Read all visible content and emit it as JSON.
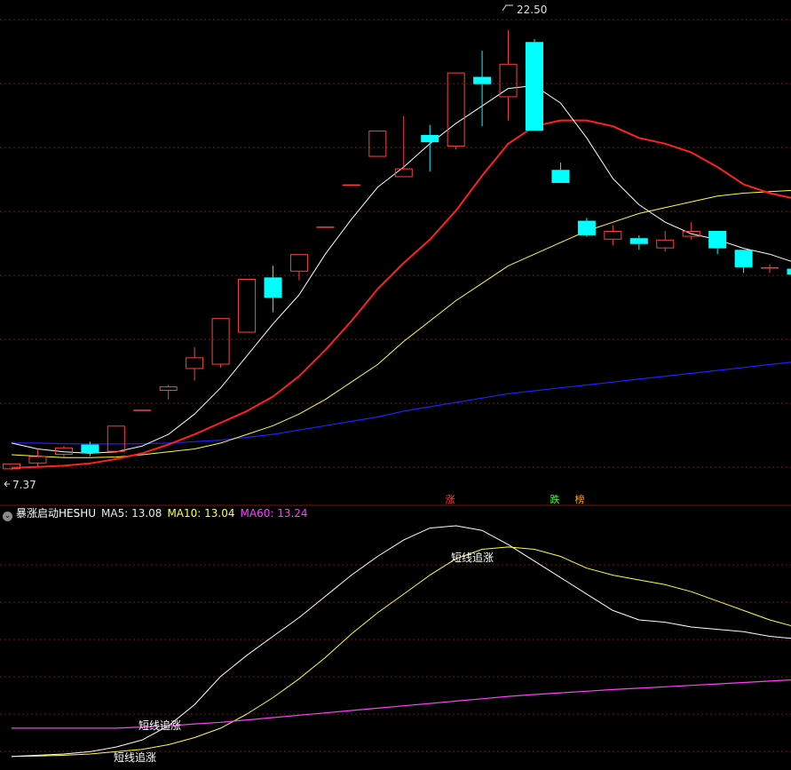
{
  "colors": {
    "background": "#000000",
    "bull": "#ff4040",
    "bear": "#00ffff",
    "ma_short": "#ffffff",
    "ma_mid": "#ff2020",
    "ma_long": "#ffff40",
    "ma_slow": "#2020ff",
    "ind_ma10": "#ffff40",
    "ind_ma60": "#ff40ff",
    "grid": "#7a1515"
  },
  "header": {
    "toggle_icon": "chevron-down-icon",
    "indicator_name": "暴涨启动HESHU",
    "ma5_label": "MA5: 13.08",
    "ma10_label": "MA10: 13.04",
    "ma60_label": "MA60: 13.24"
  },
  "tags": {
    "up": "涨",
    "down": "跌",
    "board": "榜"
  },
  "chart_data": [
    {
      "type": "candlestick",
      "high_label": "22.50",
      "low_label": "7.37",
      "ylim": [
        6.8,
        23.3
      ],
      "candles": [
        {
          "o": 7.4,
          "c": 7.6,
          "h": 7.6,
          "l": 7.37
        },
        {
          "o": 7.6,
          "c": 7.85,
          "h": 8.1,
          "l": 7.5
        },
        {
          "o": 7.9,
          "c": 8.15,
          "h": 8.2,
          "l": 7.8
        },
        {
          "o": 8.25,
          "c": 7.95,
          "h": 8.35,
          "l": 7.85
        },
        {
          "o": 8.0,
          "c": 8.9,
          "h": 8.9,
          "l": 7.95
        },
        {
          "o": 9.45,
          "c": 9.45,
          "h": 9.45,
          "l": 9.45
        },
        {
          "o": 10.1,
          "c": 10.25,
          "h": 10.3,
          "l": 9.8
        },
        {
          "o": 10.85,
          "c": 11.25,
          "h": 11.6,
          "l": 10.45
        },
        {
          "o": 11.0,
          "c": 12.6,
          "h": 12.6,
          "l": 10.9
        },
        {
          "o": 12.1,
          "c": 13.95,
          "h": 13.95,
          "l": 12.1
        },
        {
          "o": 14.0,
          "c": 13.3,
          "h": 14.4,
          "l": 12.8
        },
        {
          "o": 14.2,
          "c": 14.8,
          "h": 14.8,
          "l": 13.9
        },
        {
          "o": 15.75,
          "c": 15.75,
          "h": 15.75,
          "l": 15.75
        },
        {
          "o": 17.2,
          "c": 17.2,
          "h": 17.2,
          "l": 17.2
        },
        {
          "o": 18.15,
          "c": 19.05,
          "h": 19.05,
          "l": 18.15
        },
        {
          "o": 17.45,
          "c": 17.75,
          "h": 19.55,
          "l": 17.45
        },
        {
          "o": 18.9,
          "c": 18.65,
          "h": 19.25,
          "l": 17.65
        },
        {
          "o": 18.5,
          "c": 21.05,
          "h": 21.05,
          "l": 18.4
        },
        {
          "o": 20.9,
          "c": 20.65,
          "h": 21.8,
          "l": 19.2
        },
        {
          "o": 20.2,
          "c": 21.35,
          "h": 22.5,
          "l": 19.4
        },
        {
          "o": 22.1,
          "c": 19.05,
          "h": 22.2,
          "l": 19.05
        },
        {
          "o": 17.7,
          "c": 17.25,
          "h": 17.95,
          "l": 17.25
        },
        {
          "o": 15.95,
          "c": 15.45,
          "h": 16.05,
          "l": 15.4
        },
        {
          "o": 15.3,
          "c": 15.6,
          "h": 15.8,
          "l": 15.1
        },
        {
          "o": 15.35,
          "c": 15.15,
          "h": 15.45,
          "l": 14.95
        },
        {
          "o": 15.0,
          "c": 15.3,
          "h": 15.6,
          "l": 14.9
        },
        {
          "o": 15.4,
          "c": 15.6,
          "h": 15.9,
          "l": 15.3
        },
        {
          "o": 15.6,
          "c": 15.0,
          "h": 15.6,
          "l": 14.8
        },
        {
          "o": 14.95,
          "c": 14.35,
          "h": 14.95,
          "l": 14.15
        },
        {
          "o": 14.35,
          "c": 14.35,
          "h": 14.45,
          "l": 14.15
        },
        {
          "o": 14.3,
          "c": 14.1,
          "h": 14.35,
          "l": 14.05
        }
      ],
      "ma_white": [
        8.3,
        8.1,
        8.0,
        7.95,
        8.0,
        8.2,
        8.6,
        9.3,
        10.2,
        11.3,
        12.4,
        13.4,
        14.8,
        16.0,
        17.1,
        17.8,
        18.6,
        19.3,
        19.9,
        20.5,
        20.6,
        20.0,
        18.8,
        17.4,
        16.5,
        15.9,
        15.5,
        15.3,
        15.0,
        14.8,
        14.5
      ],
      "ma_red": [
        7.45,
        7.48,
        7.52,
        7.6,
        7.75,
        7.95,
        8.25,
        8.6,
        9.0,
        9.4,
        9.9,
        10.6,
        11.5,
        12.5,
        13.6,
        14.5,
        15.3,
        16.3,
        17.5,
        18.6,
        19.2,
        19.4,
        19.4,
        19.2,
        18.8,
        18.6,
        18.3,
        17.8,
        17.2,
        16.9,
        16.7
      ],
      "ma_yellow": [
        7.9,
        7.85,
        7.8,
        7.8,
        7.82,
        7.9,
        8.0,
        8.1,
        8.3,
        8.6,
        8.9,
        9.3,
        9.8,
        10.4,
        11.0,
        11.8,
        12.5,
        13.2,
        13.8,
        14.4,
        14.8,
        15.2,
        15.6,
        15.9,
        16.2,
        16.4,
        16.6,
        16.8,
        16.9,
        16.95,
        17.0
      ],
      "ma_blue": [
        8.3,
        8.3,
        8.28,
        8.27,
        8.27,
        8.28,
        8.3,
        8.35,
        8.4,
        8.5,
        8.6,
        8.75,
        8.9,
        9.05,
        9.2,
        9.4,
        9.55,
        9.7,
        9.85,
        10.0,
        10.1,
        10.2,
        10.3,
        10.4,
        10.5,
        10.6,
        10.7,
        10.8,
        10.9,
        11.0,
        11.1
      ]
    },
    {
      "type": "line",
      "ylim": [
        0,
        100
      ],
      "series": [
        {
          "name": "MA5",
          "values": [
            2,
            2.5,
            3,
            4,
            6,
            9,
            15,
            24,
            36,
            45,
            53,
            61,
            70,
            79,
            87,
            94,
            99,
            100,
            98,
            92,
            85,
            78,
            71,
            64,
            60,
            59,
            57,
            56,
            55,
            53,
            52
          ]
        },
        {
          "name": "MA10",
          "values": [
            2,
            2.2,
            2.5,
            3,
            4,
            5,
            7,
            10,
            14,
            20,
            27,
            35,
            44,
            54,
            63,
            71,
            79,
            86,
            90,
            91,
            90,
            87,
            82,
            79,
            77,
            75,
            72,
            68,
            64,
            60,
            57
          ]
        },
        {
          "name": "MA60",
          "values": [
            14,
            14,
            14,
            14,
            14,
            14.5,
            15,
            15.8,
            16.5,
            17.5,
            18.5,
            19.5,
            20.5,
            21.5,
            22.5,
            23.5,
            24.5,
            25.5,
            26.5,
            27.5,
            28.3,
            29,
            29.7,
            30.4,
            31,
            31.6,
            32.2,
            32.8,
            33.4,
            34,
            34.6
          ]
        }
      ],
      "annotations": [
        "短线追涨",
        "短线追涨",
        "短线追涨"
      ]
    }
  ]
}
